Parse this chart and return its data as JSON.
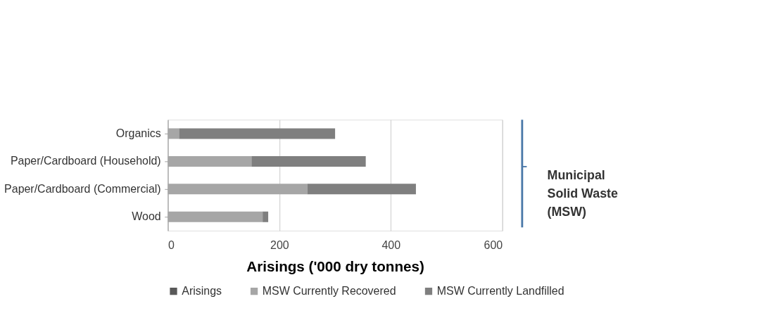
{
  "chart_data": {
    "type": "bar",
    "orientation": "horizontal",
    "stacked": true,
    "xlabel": "Arisings ('000 dry tonnes)",
    "categories": [
      "Organics",
      "Paper/Cardboard (Household)",
      "Paper/Cardboard (Commercial)",
      "Wood"
    ],
    "series": [
      {
        "name": "Arisings",
        "color": "#595959",
        "values": [
          null,
          null,
          null,
          null
        ]
      },
      {
        "name": "MSW Currently Recovered",
        "color": "#a6a6a6",
        "values": [
          20,
          150,
          250,
          170
        ]
      },
      {
        "name": "MSW Currently Landfilled",
        "color": "#7f7f7f",
        "values": [
          280,
          205,
          195,
          10
        ]
      }
    ],
    "xlim": [
      0,
      600
    ],
    "xticks": [
      0,
      200,
      400,
      600
    ],
    "grid": "x",
    "legend": "bottom",
    "annotations": [
      "Municipal\nSolid Waste\n(MSW)"
    ]
  }
}
